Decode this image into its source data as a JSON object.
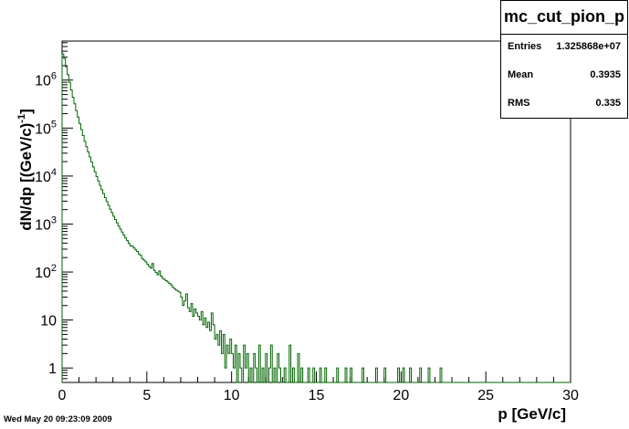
{
  "chart_data": {
    "type": "histogram",
    "title": "mc_cut_pion_p",
    "xlabel": "p [GeV/c]",
    "ylabel": "dN/dp [(GeV/c)-1]",
    "ylabel_main": "dN/dp [(GeV/c)",
    "ylabel_exp": "-1",
    "ylabel_close": "]",
    "xlim": [
      0,
      30
    ],
    "ylog": true,
    "ylim": [
      0.5,
      6500000
    ],
    "xticks": [
      "0",
      "5",
      "10",
      "15",
      "20",
      "25",
      "30"
    ],
    "yticks": [
      {
        "base": "1",
        "exp": ""
      },
      {
        "base": "10",
        "exp": ""
      },
      {
        "base": "10",
        "exp": "2"
      },
      {
        "base": "10",
        "exp": "3"
      },
      {
        "base": "10",
        "exp": "4"
      },
      {
        "base": "10",
        "exp": "5"
      },
      {
        "base": "10",
        "exp": "6"
      }
    ],
    "line_color": "#006400",
    "series": [
      {
        "bin_width": 0.1,
        "values": [
          3500000,
          2800000,
          1900000,
          1300000,
          900000,
          620000,
          440000,
          320000,
          230000,
          170000,
          125000,
          93000,
          70000,
          53000,
          41000,
          32000,
          25000,
          19500,
          15500,
          12300,
          9800,
          7900,
          6400,
          5200,
          4300,
          3550,
          2950,
          2450,
          2050,
          1730,
          1460,
          1240,
          1060,
          910,
          785,
          680,
          590,
          515,
          450,
          395,
          348,
          350,
          318,
          290,
          268,
          236,
          222,
          190,
          176,
          162,
          145,
          132,
          120,
          150,
          108,
          98,
          88,
          105,
          82,
          74,
          70,
          66,
          62,
          58,
          54,
          48,
          45,
          42,
          40,
          38,
          30,
          20,
          25,
          35,
          18,
          15,
          22,
          12,
          17,
          14,
          12,
          10,
          15,
          8,
          11,
          7,
          9,
          6,
          14,
          8,
          4,
          5,
          3,
          6,
          2,
          5,
          1,
          3,
          2,
          4,
          2,
          1,
          3,
          0,
          2,
          1,
          0,
          3,
          1,
          2,
          0,
          1,
          0,
          2,
          1,
          0,
          3,
          0,
          1,
          0,
          2,
          0,
          1,
          3,
          0,
          1,
          0,
          2,
          1,
          0,
          0,
          1,
          0,
          0,
          3,
          0,
          1,
          0,
          0,
          2,
          0,
          1,
          0,
          0,
          0,
          1,
          0,
          0,
          1,
          0,
          0,
          0,
          1,
          0,
          0,
          1,
          0,
          0,
          0,
          0,
          0,
          0,
          1,
          0,
          0,
          0,
          0,
          1,
          0,
          0,
          1,
          0,
          0,
          0,
          0,
          0,
          0,
          1,
          0,
          0,
          0,
          0,
          0,
          0,
          0,
          1,
          0,
          0,
          0,
          0,
          1,
          0,
          0,
          0,
          0,
          0,
          0,
          0,
          1,
          0,
          0,
          1,
          0,
          0,
          0,
          1,
          0,
          0,
          0,
          0,
          0,
          1,
          0,
          0,
          0,
          0,
          1,
          0,
          0,
          0,
          0,
          0,
          0,
          1,
          0,
          0,
          0,
          0,
          0,
          0,
          0,
          0,
          0,
          0,
          0,
          0,
          0,
          0,
          0,
          0,
          0,
          0,
          0,
          0,
          0,
          0,
          0,
          0,
          0,
          0,
          0,
          0,
          0,
          0,
          0,
          0,
          0,
          0,
          0,
          0,
          0,
          0,
          0,
          0,
          0,
          0,
          0,
          0,
          0,
          0,
          0,
          0,
          0,
          0,
          0,
          0,
          0,
          0,
          0,
          0,
          0,
          0,
          0,
          0,
          0,
          0,
          0,
          0,
          0,
          0,
          0,
          0,
          0,
          0,
          0,
          0,
          0,
          0,
          0,
          0
        ]
      }
    ],
    "stats": {
      "title": "mc_cut_pion_p",
      "entries_label": "Entries",
      "entries": "1.325868e+07",
      "mean_label": "Mean",
      "mean": "0.3935",
      "rms_label": "RMS",
      "rms": "0.335"
    }
  },
  "timestamp": "Wed May 20 09:23:09 2009"
}
